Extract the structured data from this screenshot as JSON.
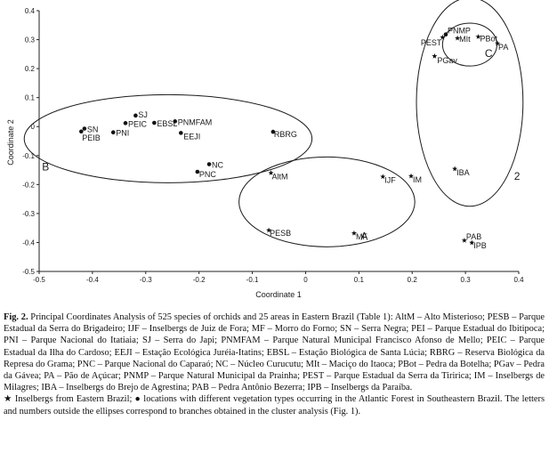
{
  "chart_data": {
    "type": "scatter",
    "xlabel": "Coordinate 1",
    "ylabel": "Coordinate 2",
    "xlim": [
      -0.5,
      0.4
    ],
    "ylim": [
      -0.5,
      0.4
    ],
    "xticks": [
      "-0.5",
      "-0.4",
      "-0.3",
      "-0.2",
      "-0.1",
      "0",
      "0.1",
      "0.2",
      "0.3",
      "0.4"
    ],
    "yticks": [
      "0.4",
      "0.3",
      "0.2",
      "0.1",
      "0",
      "-0.1",
      "-0.2",
      "-0.3",
      "-0.4",
      "-0.5"
    ],
    "grid": false,
    "points": [
      {
        "label": "SJ",
        "x": -0.319,
        "y": 0.038,
        "marker": "dot"
      },
      {
        "label": "PEIC",
        "x": -0.338,
        "y": 0.012,
        "marker": "dot"
      },
      {
        "label": "EBSL",
        "x": -0.284,
        "y": 0.013,
        "marker": "dot"
      },
      {
        "label": "PNMFAM",
        "x": -0.245,
        "y": 0.018,
        "marker": "dot"
      },
      {
        "label": "SN",
        "x": -0.415,
        "y": -0.007,
        "marker": "dot"
      },
      {
        "label": "PEIB",
        "x": -0.421,
        "y": -0.017,
        "marker": "dot"
      },
      {
        "label": "PNI",
        "x": -0.361,
        "y": -0.02,
        "marker": "dot"
      },
      {
        "label": "EEJI",
        "x": -0.234,
        "y": -0.022,
        "marker": "dot"
      },
      {
        "label": "RBRG",
        "x": -0.061,
        "y": -0.018,
        "marker": "dot"
      },
      {
        "label": "NC",
        "x": -0.181,
        "y": -0.13,
        "marker": "dot"
      },
      {
        "label": "PNC",
        "x": -0.203,
        "y": -0.156,
        "marker": "dot"
      },
      {
        "label": "AltM",
        "x": -0.065,
        "y": -0.16,
        "marker": "star"
      },
      {
        "label": "IJF",
        "x": 0.145,
        "y": -0.173,
        "marker": "star"
      },
      {
        "label": "IM",
        "x": 0.198,
        "y": -0.171,
        "marker": "star"
      },
      {
        "label": "IBA",
        "x": 0.28,
        "y": -0.146,
        "marker": "star"
      },
      {
        "label": "PESB",
        "x": -0.069,
        "y": -0.358,
        "marker": "star"
      },
      {
        "label": "MF",
        "x": 0.091,
        "y": -0.368,
        "marker": "star"
      },
      {
        "label": "PAB",
        "x": 0.298,
        "y": -0.393,
        "marker": "star"
      },
      {
        "label": "IPB",
        "x": 0.312,
        "y": -0.401,
        "marker": "star"
      },
      {
        "label": "PNMP",
        "x": 0.263,
        "y": 0.318,
        "marker": "dot"
      },
      {
        "label": "PEST",
        "x": 0.257,
        "y": 0.308,
        "marker": "star"
      },
      {
        "label": "MIt",
        "x": 0.285,
        "y": 0.305,
        "marker": "star"
      },
      {
        "label": "PBot",
        "x": 0.324,
        "y": 0.31,
        "marker": "star"
      },
      {
        "label": "PA",
        "x": 0.36,
        "y": 0.287,
        "marker": "star"
      },
      {
        "label": "PGav",
        "x": 0.242,
        "y": 0.243,
        "marker": "star"
      }
    ],
    "ellipses": [
      {
        "label": "A",
        "cx": 0.04,
        "cy": -0.26,
        "rx": 0.165,
        "ry": 0.155
      },
      {
        "label": "B",
        "cx": -0.258,
        "cy": -0.042,
        "rx": 0.27,
        "ry": 0.152
      },
      {
        "label": "C",
        "cx": 0.308,
        "cy": 0.283,
        "rx": 0.051,
        "ry": 0.074
      },
      {
        "label": "2",
        "cx": 0.308,
        "cy": 0.085,
        "rx": 0.1,
        "ry": 0.36
      }
    ]
  },
  "caption": {
    "fig_no": "Fig. 2.",
    "text": "Principal Coordinates Analysis of 525 species of orchids and 25 areas in Eastern Brazil (Table 1): AltM – Alto Misterioso; PESB – Parque Estadual da Serra do Brigadeiro; IJF – Inselbergs de Juiz de Fora; MF – Morro do Forno; SN – Serra Negra; PEI – Parque Estadual do Ibitipoca; PNI – Parque Nacional do Itatiaia; SJ – Serra do Japi; PNMFAM – Parque Natural Municipal Francisco Afonso de Mello; PEIC – Parque Estadual da Ilha do Cardoso; EEJI – Estação Ecológica Juréia-Itatins; EBSL – Estação Biológica de Santa Lúcia; RBRG – Reserva Biológica da Represa do Grama; PNC – Parque Nacional do Caparaó; NC – Núcleo Curucutu; MIt – Maciço do Itaoca; PBot – Pedra da Botelha; PGav – Pedra da Gávea; PA – Pão de Açúcar; PNMP – Parque Natural Municipal da Prainha; PEST – Parque Estadual da Serra da Tiririca; IM – Inselbergs de Milagres; IBA – Inselbergs do Brejo de Agrestina; PAB – Pedra Antônio Bezerra; IPB – Inselbergs da Paraíba.",
    "legend_text": "★ Inselbergs from Eastern Brazil; ● locations with different vegetation types occurring in the Atlantic Forest in Southeastern Brazil. The letters and numbers outside the ellipses correspond to branches obtained in the cluster analysis (Fig. 1)."
  }
}
